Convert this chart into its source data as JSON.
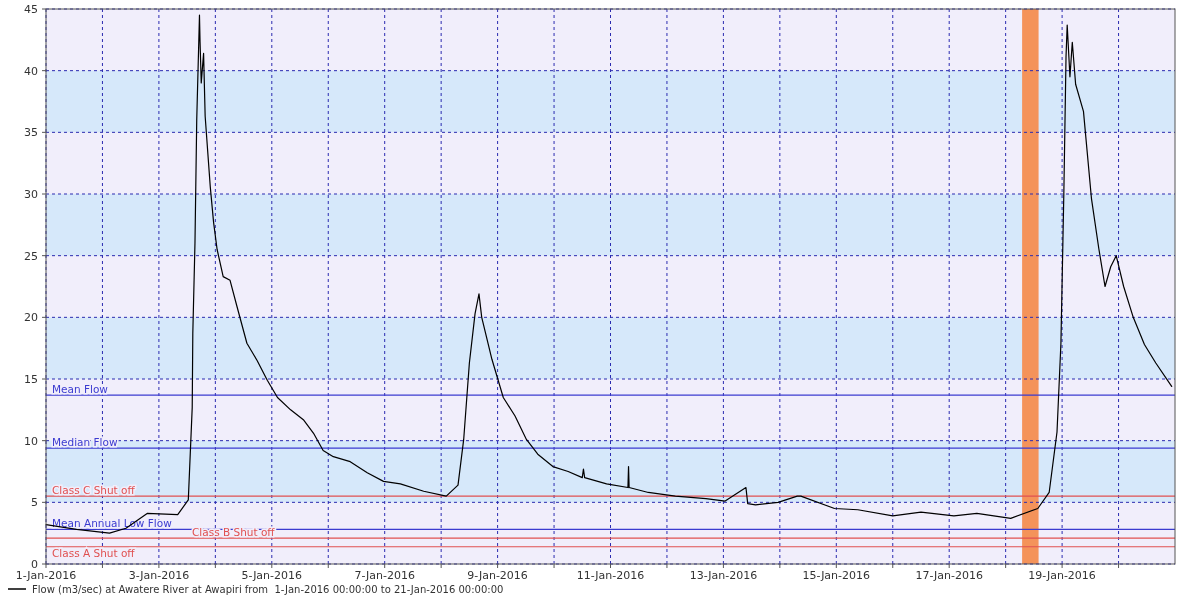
{
  "chart_data": {
    "type": "line",
    "xlim": [
      "2016-01-01T00:00",
      "2016-01-21T00:00"
    ],
    "xticks": [
      {
        "value": "2016-01-01",
        "label": "1-Jan-2016"
      },
      {
        "value": "2016-01-02",
        "label": null
      },
      {
        "value": "2016-01-03",
        "label": "3-Jan-2016"
      },
      {
        "value": "2016-01-04",
        "label": null
      },
      {
        "value": "2016-01-05",
        "label": "5-Jan-2016"
      },
      {
        "value": "2016-01-06",
        "label": null
      },
      {
        "value": "2016-01-07",
        "label": "7-Jan-2016"
      },
      {
        "value": "2016-01-08",
        "label": null
      },
      {
        "value": "2016-01-09",
        "label": "9-Jan-2016"
      },
      {
        "value": "2016-01-10",
        "label": null
      },
      {
        "value": "2016-01-11",
        "label": "11-Jan-2016"
      },
      {
        "value": "2016-01-12",
        "label": null
      },
      {
        "value": "2016-01-13",
        "label": "13-Jan-2016"
      },
      {
        "value": "2016-01-14",
        "label": null
      },
      {
        "value": "2016-01-15",
        "label": "15-Jan-2016"
      },
      {
        "value": "2016-01-16",
        "label": null
      },
      {
        "value": "2016-01-17",
        "label": "17-Jan-2016"
      },
      {
        "value": "2016-01-18",
        "label": null
      },
      {
        "value": "2016-01-19",
        "label": "19-Jan-2016"
      },
      {
        "value": "2016-01-20",
        "label": null
      }
    ],
    "ylim": [
      0,
      45
    ],
    "yticks": [
      0,
      5,
      10,
      15,
      20,
      25,
      30,
      35,
      40,
      45
    ],
    "grid": true,
    "legend": "bottom",
    "line_style": "solid",
    "series": [
      {
        "name": "Flow (m3/sec) at Awatere River at Awapiri from  1-Jan-2016 00:00:00 to 21-Jan-2016 00:00:00",
        "color": "#000000",
        "x": [
          "2016-01-01T00:00",
          "2016-01-01T13:00",
          "2016-01-02T03:00",
          "2016-01-02T10:00",
          "2016-01-02T19:00",
          "2016-01-03T08:00",
          "2016-01-03T12:30",
          "2016-01-03T14:10",
          "2016-01-03T14:25",
          "2016-01-03T15:20",
          "2016-01-03T16:05",
          "2016-01-03T17:15",
          "2016-01-03T17:30",
          "2016-01-03T18:00",
          "2016-01-03T19:00",
          "2016-01-03T19:40",
          "2016-01-03T21:50",
          "2016-01-03T23:15",
          "2016-01-04T00:45",
          "2016-01-04T03:20",
          "2016-01-04T06:15",
          "2016-01-04T09:10",
          "2016-01-04T13:25",
          "2016-01-04T17:45",
          "2016-01-04T22:05",
          "2016-01-05T02:25",
          "2016-01-05T08:00",
          "2016-01-05T13:25",
          "2016-01-05T17:45",
          "2016-01-05T21:50",
          "2016-01-06T02:10",
          "2016-01-06T09:20",
          "2016-01-06T16:35",
          "2016-01-06T23:30",
          "2016-01-07T06:40",
          "2016-01-07T16:35",
          "2016-01-08T02:10",
          "2016-01-08T07:10",
          "2016-01-08T09:35",
          "2016-01-08T12:00",
          "2016-01-08T14:25",
          "2016-01-08T16:05",
          "2016-01-08T17:15",
          "2016-01-08T21:35",
          "2016-01-09T02:25",
          "2016-01-09T07:25",
          "2016-01-09T12:15",
          "2016-01-09T17:05",
          "2016-01-09T23:30",
          "2016-01-10T06:00",
          "2016-01-10T12:00",
          "2016-01-10T12:30",
          "2016-01-10T13:00",
          "2016-01-10T22:20",
          "2016-01-11T07:25",
          "2016-01-11T07:40",
          "2016-01-11T07:55",
          "2016-01-11T16:05",
          "2016-01-12T03:35",
          "2016-01-12T16:35",
          "2016-01-13T00:45",
          "2016-01-13T09:35",
          "2016-01-13T10:20",
          "2016-01-13T13:40",
          "2016-01-13T23:15",
          "2016-01-14T07:25",
          "2016-01-14T08:55",
          "2016-01-14T23:15",
          "2016-01-15T09:10",
          "2016-01-16T00:00",
          "2016-01-16T12:00",
          "2016-01-17T02:00",
          "2016-01-17T11:45",
          "2016-01-18T02:10",
          "2016-01-18T13:40",
          "2016-01-18T18:30",
          "2016-01-18T21:50",
          "2016-01-18T23:30",
          "2016-01-19T00:45",
          "2016-01-19T01:40",
          "2016-01-19T02:10",
          "2016-01-19T03:20",
          "2016-01-19T04:20",
          "2016-01-19T05:45",
          "2016-01-19T09:05",
          "2016-01-19T12:30",
          "2016-01-19T15:35",
          "2016-01-19T18:15",
          "2016-01-19T20:40",
          "2016-01-19T23:00",
          "2016-01-20T02:10",
          "2016-01-20T06:15",
          "2016-01-20T11:00",
          "2016-01-20T15:50",
          "2016-01-20T22:35"
        ],
        "values": [
          3.2,
          2.8,
          2.5,
          2.9,
          4.1,
          4.0,
          5.2,
          12.7,
          18.7,
          26,
          36,
          44.5,
          42.3,
          39,
          41.4,
          36.3,
          30.6,
          27.7,
          25.5,
          23.3,
          23.0,
          20.9,
          17.9,
          16.5,
          14.9,
          13.5,
          12.5,
          11.7,
          10.6,
          9.2,
          8.7,
          8.3,
          7.4,
          6.7,
          6.5,
          5.9,
          5.5,
          6.4,
          10.1,
          16.3,
          20.3,
          21.9,
          20,
          16.6,
          13.5,
          12,
          10.1,
          8.9,
          7.9,
          7.5,
          7.0,
          7.7,
          7.0,
          6.5,
          6.2,
          7.9,
          6.2,
          5.8,
          5.5,
          5.3,
          5.1,
          6.2,
          4.9,
          4.8,
          5.0,
          5.5,
          5.5,
          4.5,
          4.4,
          3.9,
          4.2,
          3.9,
          4.1,
          3.7,
          4.5,
          5.8,
          10.7,
          17.9,
          30.2,
          41.1,
          43.7,
          39.5,
          42.3,
          38.9,
          36.7,
          29.6,
          25.6,
          22.5,
          24.1,
          25.0,
          22.5,
          20,
          17.8,
          16.3,
          14.4
        ]
      }
    ],
    "ref_lines": [
      {
        "axis": "y",
        "value": 13.7,
        "label": "Mean Flow",
        "color": "#3b3bd0"
      },
      {
        "axis": "y",
        "value": 9.4,
        "label": "Median Flow",
        "color": "#3b3bd0"
      },
      {
        "axis": "y",
        "value": 5.5,
        "label": "Class C Shut off",
        "color": "#e05050"
      },
      {
        "axis": "y",
        "value": 2.8,
        "label": "Mean Annual Low Flow",
        "color": "#3b3bd0"
      },
      {
        "axis": "y",
        "value": 2.1,
        "label": "Class B Shut off",
        "color": "#e05050"
      },
      {
        "axis": "y",
        "value": 1.4,
        "label": "Class A Shut off",
        "color": "#e05050"
      }
    ],
    "bands": [
      {
        "axis": "x",
        "from": "2016-01-18T07:00",
        "to": "2016-01-18T14:00",
        "color": "#f4935a"
      }
    ]
  }
}
